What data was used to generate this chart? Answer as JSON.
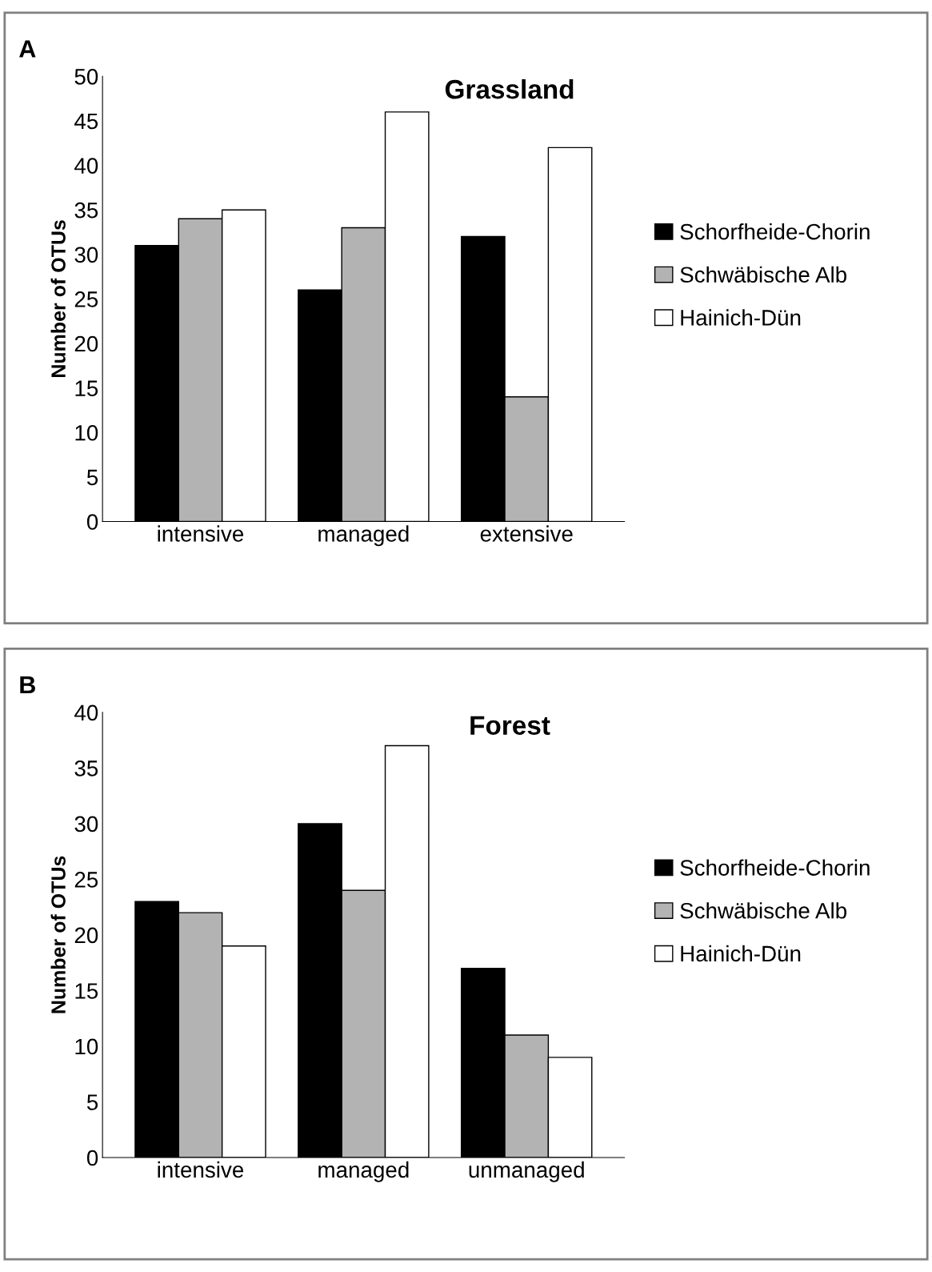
{
  "chart_data": [
    {
      "type": "bar",
      "title": "Grassland",
      "ylabel": "Number of OTUs",
      "annotations": [
        "A"
      ],
      "categories": [
        "intensive",
        "managed",
        "extensive"
      ],
      "series": [
        {
          "name": "Schorfheide-Chorin",
          "color": "#000000",
          "values": [
            31,
            26,
            32
          ]
        },
        {
          "name": "Schwäbische Alb",
          "color": "#b3b3b3",
          "values": [
            34,
            33,
            14
          ]
        },
        {
          "name": "Hainich-Dün",
          "color": "#ffffff",
          "values": [
            35,
            46,
            42
          ]
        }
      ],
      "ylim": [
        0,
        50
      ],
      "yticks": [
        0,
        5,
        10,
        15,
        20,
        25,
        30,
        35,
        40,
        45,
        50
      ],
      "grid": false,
      "legend": "right"
    },
    {
      "type": "bar",
      "title": "Forest",
      "ylabel": "Number of OTUs",
      "annotations": [
        "B"
      ],
      "categories": [
        "intensive",
        "managed",
        "unmanaged"
      ],
      "series": [
        {
          "name": "Schorfheide-Chorin",
          "color": "#000000",
          "values": [
            23,
            30,
            17
          ]
        },
        {
          "name": "Schwäbische Alb",
          "color": "#b3b3b3",
          "values": [
            22,
            24,
            11
          ]
        },
        {
          "name": "Hainich-Dün",
          "color": "#ffffff",
          "values": [
            19,
            37,
            9
          ]
        }
      ],
      "ylim": [
        0,
        40
      ],
      "yticks": [
        0,
        5,
        10,
        15,
        20,
        25,
        30,
        35,
        40
      ],
      "grid": false,
      "legend": "right"
    }
  ]
}
